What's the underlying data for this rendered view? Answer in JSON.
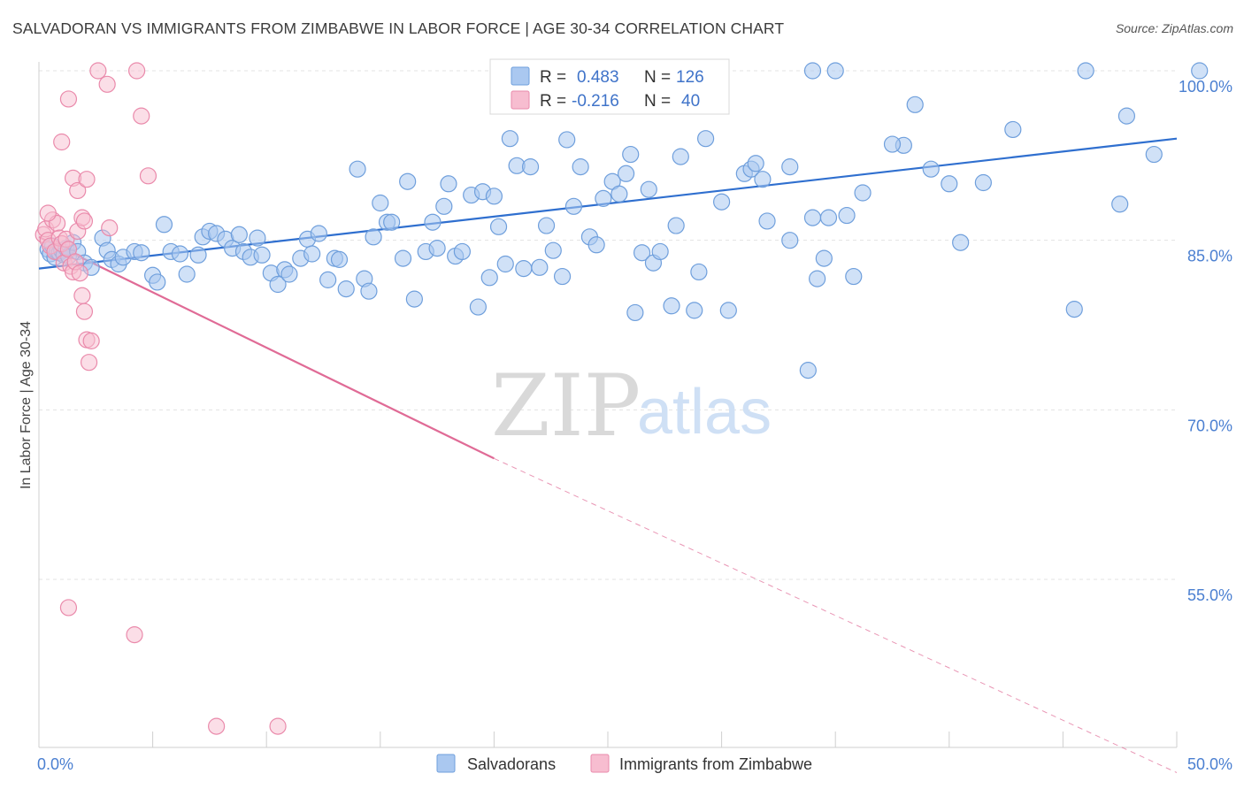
{
  "header": {
    "title": "SALVADORAN VS IMMIGRANTS FROM ZIMBABWE IN LABOR FORCE | AGE 30-34 CORRELATION CHART",
    "source": "Source: ZipAtlas.com"
  },
  "watermark": {
    "zip": "ZIP",
    "atlas": "atlas"
  },
  "colors": {
    "blue_fill": "#aac8f0",
    "blue_stroke": "#6f9fdc",
    "blue_line": "#2f6fcf",
    "pink_fill": "#f7bdd0",
    "pink_stroke": "#ea8aab",
    "pink_line": "#e06b96",
    "grid": "#e3e3e3",
    "tick_text": "#4a7fd1"
  },
  "chart_data": {
    "type": "scatter",
    "title": "SALVADORAN VS IMMIGRANTS FROM ZIMBABWE IN LABOR FORCE | AGE 30-34 CORRELATION CHART",
    "xlabel": "",
    "ylabel": "In Labor Force | Age 30-34",
    "xlim": [
      0,
      50
    ],
    "ylim": [
      40,
      101.5
    ],
    "x_tick_labels": [
      {
        "value": 0,
        "label": "0.0%"
      },
      {
        "value": 50,
        "label": "50.0%"
      }
    ],
    "y_tick_labels": [
      {
        "value": 100,
        "label": "100.0%"
      },
      {
        "value": 85,
        "label": "85.0%"
      },
      {
        "value": 70,
        "label": "70.0%"
      },
      {
        "value": 55,
        "label": "55.0%"
      }
    ],
    "grid": true,
    "legend": {
      "position": "top-center",
      "entries": [
        {
          "r_label": "R =",
          "r_value": "0.483",
          "n_label": "N =",
          "n_value": "126"
        },
        {
          "r_label": "R =",
          "r_value": "-0.216",
          "n_label": "N =",
          "n_value": "40"
        }
      ]
    },
    "series": [
      {
        "name": "Salvadorans",
        "r": 0.483,
        "n": 126,
        "trend": {
          "x0": 0,
          "y0": 82.5,
          "x1": 50,
          "y1": 94.0
        },
        "points": [
          [
            0.4,
            84.2
          ],
          [
            0.5,
            83.8
          ],
          [
            0.6,
            84.5
          ],
          [
            0.7,
            83.5
          ],
          [
            0.8,
            84.0
          ],
          [
            0.9,
            83.9
          ],
          [
            1.0,
            84.1
          ],
          [
            1.1,
            83.7
          ],
          [
            1.2,
            84.3
          ],
          [
            1.3,
            83.6
          ],
          [
            1.5,
            84.8
          ],
          [
            1.7,
            84.0
          ],
          [
            2.0,
            83.0
          ],
          [
            2.3,
            82.6
          ],
          [
            2.8,
            85.2
          ],
          [
            3.0,
            84.1
          ],
          [
            3.2,
            83.3
          ],
          [
            3.5,
            82.9
          ],
          [
            3.7,
            83.5
          ],
          [
            4.2,
            84.0
          ],
          [
            4.5,
            83.9
          ],
          [
            5.0,
            81.9
          ],
          [
            5.2,
            81.3
          ],
          [
            5.5,
            86.4
          ],
          [
            5.8,
            84.0
          ],
          [
            6.2,
            83.8
          ],
          [
            6.5,
            82.0
          ],
          [
            7.0,
            83.7
          ],
          [
            7.2,
            85.3
          ],
          [
            7.5,
            85.8
          ],
          [
            7.8,
            85.6
          ],
          [
            8.2,
            85.1
          ],
          [
            8.5,
            84.3
          ],
          [
            8.8,
            85.5
          ],
          [
            9.0,
            84.0
          ],
          [
            9.3,
            83.5
          ],
          [
            9.6,
            85.2
          ],
          [
            9.8,
            83.7
          ],
          [
            10.2,
            82.1
          ],
          [
            10.5,
            81.1
          ],
          [
            10.8,
            82.4
          ],
          [
            11.0,
            82.0
          ],
          [
            11.5,
            83.4
          ],
          [
            11.8,
            85.1
          ],
          [
            12.0,
            83.8
          ],
          [
            12.3,
            85.6
          ],
          [
            12.7,
            81.5
          ],
          [
            13.0,
            83.4
          ],
          [
            13.2,
            83.3
          ],
          [
            13.5,
            80.7
          ],
          [
            14.0,
            91.3
          ],
          [
            14.3,
            81.6
          ],
          [
            14.5,
            80.5
          ],
          [
            14.7,
            85.3
          ],
          [
            15.0,
            88.3
          ],
          [
            15.3,
            86.6
          ],
          [
            15.5,
            86.6
          ],
          [
            16.0,
            83.4
          ],
          [
            16.2,
            90.2
          ],
          [
            16.5,
            79.8
          ],
          [
            17.0,
            84.0
          ],
          [
            17.3,
            86.6
          ],
          [
            17.5,
            84.3
          ],
          [
            17.8,
            88.0
          ],
          [
            18.0,
            90.0
          ],
          [
            18.3,
            83.6
          ],
          [
            18.6,
            84.0
          ],
          [
            19.0,
            89.0
          ],
          [
            19.3,
            79.1
          ],
          [
            19.5,
            89.3
          ],
          [
            19.8,
            81.7
          ],
          [
            20.0,
            88.9
          ],
          [
            20.2,
            86.2
          ],
          [
            20.5,
            82.9
          ],
          [
            20.7,
            94.0
          ],
          [
            21.0,
            91.6
          ],
          [
            21.3,
            82.5
          ],
          [
            21.6,
            91.5
          ],
          [
            22.0,
            82.6
          ],
          [
            22.3,
            86.3
          ],
          [
            22.6,
            84.1
          ],
          [
            23.0,
            81.8
          ],
          [
            23.2,
            93.9
          ],
          [
            23.5,
            88.0
          ],
          [
            23.8,
            91.5
          ],
          [
            24.2,
            85.3
          ],
          [
            24.5,
            84.6
          ],
          [
            24.8,
            88.7
          ],
          [
            25.2,
            90.2
          ],
          [
            25.5,
            89.1
          ],
          [
            25.8,
            90.9
          ],
          [
            26.0,
            92.6
          ],
          [
            26.2,
            78.6
          ],
          [
            26.5,
            83.9
          ],
          [
            26.8,
            89.5
          ],
          [
            27.0,
            83.0
          ],
          [
            27.3,
            84.0
          ],
          [
            27.8,
            79.2
          ],
          [
            28.0,
            86.3
          ],
          [
            28.2,
            92.4
          ],
          [
            28.8,
            78.8
          ],
          [
            29.0,
            82.2
          ],
          [
            29.3,
            94.0
          ],
          [
            30.0,
            88.4
          ],
          [
            30.3,
            78.8
          ],
          [
            31.0,
            90.9
          ],
          [
            31.3,
            91.3
          ],
          [
            31.5,
            91.8
          ],
          [
            31.8,
            90.4
          ],
          [
            32.0,
            86.7
          ],
          [
            33.0,
            91.5
          ],
          [
            33.8,
            73.5
          ],
          [
            34.0,
            87.0
          ],
          [
            34.2,
            81.6
          ],
          [
            34.5,
            83.4
          ],
          [
            34.7,
            87.0
          ],
          [
            35.5,
            87.2
          ],
          [
            35.8,
            81.8
          ],
          [
            36.2,
            89.2
          ],
          [
            38.0,
            93.4
          ],
          [
            38.5,
            97.0
          ],
          [
            39.2,
            91.3
          ],
          [
            40.5,
            84.8
          ],
          [
            41.5,
            90.1
          ],
          [
            42.8,
            94.8
          ],
          [
            45.5,
            78.9
          ],
          [
            46.0,
            100.0
          ],
          [
            47.5,
            88.2
          ],
          [
            47.8,
            96.0
          ],
          [
            49.0,
            92.6
          ],
          [
            51.0,
            100.0
          ],
          [
            35.0,
            100.0
          ],
          [
            37.5,
            93.5
          ],
          [
            40.0,
            90.0
          ],
          [
            34.0,
            100.0
          ],
          [
            33.0,
            85.0
          ]
        ]
      },
      {
        "name": "Immigrants from Zimbabwe",
        "r": -0.216,
        "n": 40,
        "trend": {
          "x0": 0,
          "y0": 85.3,
          "x1": 20,
          "y1": 65.7
        },
        "trend_dashed": {
          "x0": 20,
          "y0": 65.7,
          "x1": 50,
          "y1": 37.9
        },
        "points": [
          [
            0.2,
            85.5
          ],
          [
            0.3,
            86.0
          ],
          [
            0.4,
            85.0
          ],
          [
            0.5,
            84.5
          ],
          [
            0.6,
            86.8
          ],
          [
            0.7,
            84.0
          ],
          [
            0.8,
            86.5
          ],
          [
            0.9,
            85.2
          ],
          [
            1.0,
            84.7
          ],
          [
            1.1,
            83.0
          ],
          [
            1.2,
            85.1
          ],
          [
            1.3,
            84.2
          ],
          [
            1.4,
            82.7
          ],
          [
            1.5,
            82.2
          ],
          [
            1.6,
            83.1
          ],
          [
            1.7,
            85.8
          ],
          [
            1.8,
            82.1
          ],
          [
            1.9,
            80.1
          ],
          [
            2.0,
            78.7
          ],
          [
            2.1,
            76.2
          ],
          [
            2.2,
            74.2
          ],
          [
            2.3,
            76.1
          ],
          [
            0.4,
            87.4
          ],
          [
            1.0,
            93.7
          ],
          [
            1.3,
            97.5
          ],
          [
            1.5,
            90.5
          ],
          [
            1.7,
            89.4
          ],
          [
            1.9,
            87.0
          ],
          [
            2.0,
            86.7
          ],
          [
            2.1,
            90.4
          ],
          [
            2.6,
            100.0
          ],
          [
            3.0,
            98.8
          ],
          [
            3.1,
            86.1
          ],
          [
            4.3,
            100.0
          ],
          [
            4.5,
            96.0
          ],
          [
            4.8,
            90.7
          ],
          [
            1.3,
            52.5
          ],
          [
            4.2,
            50.1
          ],
          [
            7.8,
            42.0
          ],
          [
            10.5,
            42.0
          ]
        ]
      }
    ]
  },
  "bottom_legend": {
    "items": [
      {
        "label": "Salvadorans"
      },
      {
        "label": "Immigrants from Zimbabwe"
      }
    ]
  }
}
